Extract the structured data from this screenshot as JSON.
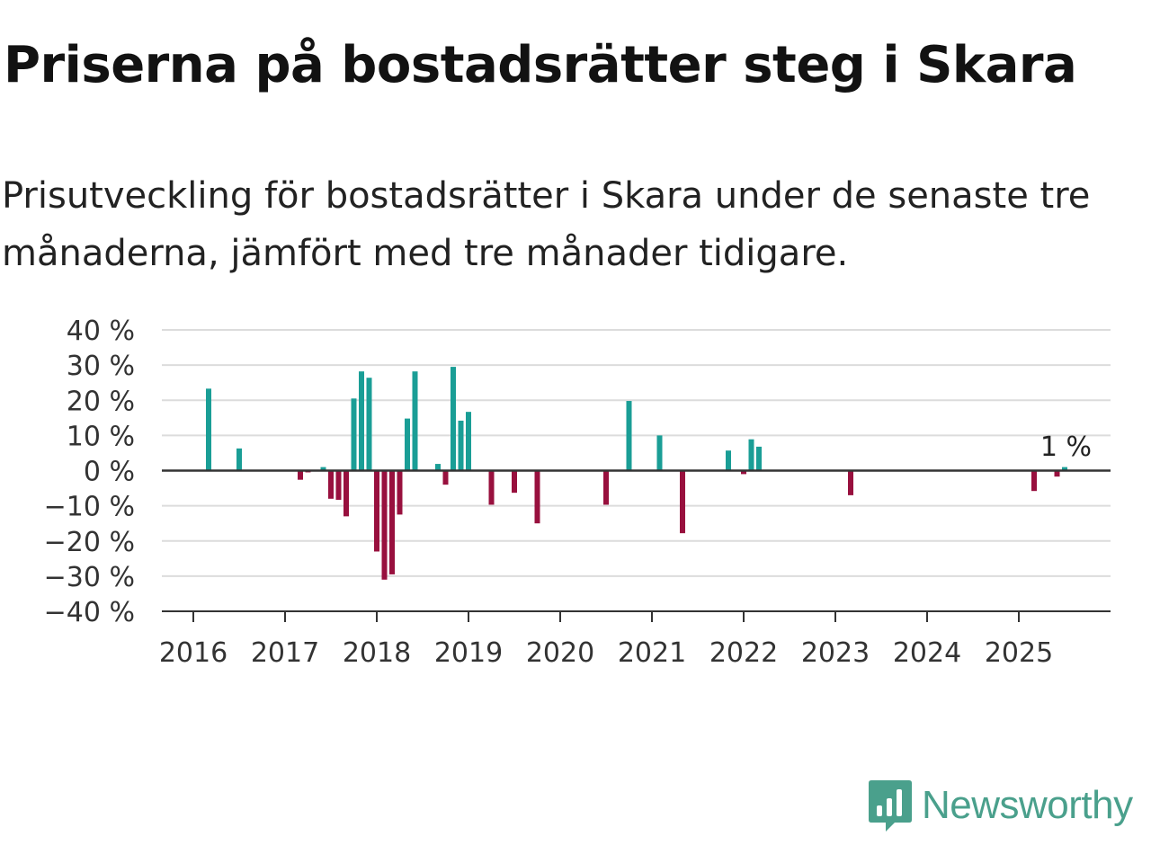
{
  "title": "Priserna på bostadsrätter steg i Skara",
  "subtitle": "Prisutveckling för bostadsrätter i Skara under de senaste tre månaderna, jämfört med tre månader tidigare.",
  "logo": {
    "icon": "newsworthy-logo-icon",
    "text": "Newsworthy"
  },
  "colors": {
    "positive": "#1a9e96",
    "negative": "#98103e",
    "grid": "#dcdcdc",
    "axis": "#333333"
  },
  "chart_data": {
    "type": "bar",
    "ylim": [
      -40,
      40
    ],
    "y_ticks": [
      40,
      30,
      20,
      10,
      0,
      -10,
      -20,
      -30,
      -40
    ],
    "y_tick_labels": [
      "40 %",
      "30 %",
      "20 %",
      "10 %",
      "0 %",
      "−10 %",
      "−20 %",
      "−30 %",
      "−40 %"
    ],
    "x_ticks": [
      "2016",
      "2017",
      "2018",
      "2019",
      "2020",
      "2021",
      "2022",
      "2023",
      "2024",
      "2025"
    ],
    "grid": true,
    "annotation": {
      "x": "2025-07",
      "text": "1 %"
    },
    "data": [
      {
        "x": "2016-03",
        "y": 23.3
      },
      {
        "x": "2016-07",
        "y": 6.3
      },
      {
        "x": "2017-03",
        "y": -2.6
      },
      {
        "x": "2017-04",
        "y": -0.5
      },
      {
        "x": "2017-06",
        "y": 1.0
      },
      {
        "x": "2017-07",
        "y": -8.0
      },
      {
        "x": "2017-08",
        "y": -8.3
      },
      {
        "x": "2017-09",
        "y": -13.0
      },
      {
        "x": "2017-10",
        "y": 20.5
      },
      {
        "x": "2017-11",
        "y": 28.2
      },
      {
        "x": "2017-12",
        "y": 26.4
      },
      {
        "x": "2018-01",
        "y": -23.0
      },
      {
        "x": "2018-02",
        "y": -31.0
      },
      {
        "x": "2018-03",
        "y": -29.5
      },
      {
        "x": "2018-04",
        "y": -12.5
      },
      {
        "x": "2018-05",
        "y": 14.8
      },
      {
        "x": "2018-06",
        "y": 28.2
      },
      {
        "x": "2018-09",
        "y": 1.9
      },
      {
        "x": "2018-10",
        "y": -4.0
      },
      {
        "x": "2018-11",
        "y": 29.5
      },
      {
        "x": "2018-12",
        "y": 14.2
      },
      {
        "x": "2019-01",
        "y": 16.7
      },
      {
        "x": "2019-04",
        "y": -9.7
      },
      {
        "x": "2019-07",
        "y": -6.3
      },
      {
        "x": "2019-10",
        "y": -15.0
      },
      {
        "x": "2020-07",
        "y": -9.7
      },
      {
        "x": "2020-10",
        "y": 19.8
      },
      {
        "x": "2021-02",
        "y": 10.0
      },
      {
        "x": "2021-05",
        "y": -17.8
      },
      {
        "x": "2021-11",
        "y": 5.7
      },
      {
        "x": "2022-01",
        "y": -1.0
      },
      {
        "x": "2022-02",
        "y": 8.9
      },
      {
        "x": "2022-03",
        "y": 6.8
      },
      {
        "x": "2023-03",
        "y": -7.0
      },
      {
        "x": "2025-03",
        "y": -5.8
      },
      {
        "x": "2025-06",
        "y": -1.7
      },
      {
        "x": "2025-07",
        "y": 1.0
      }
    ]
  }
}
